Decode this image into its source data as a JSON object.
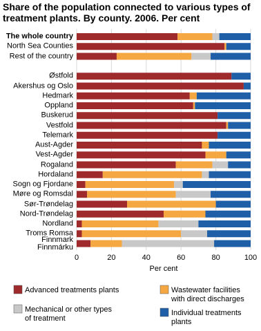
{
  "chart_data": {
    "type": "stacked_bar_horizontal",
    "title": "Share of the population connected to various types of treatment plants. By county. 2006. Per cent",
    "x_label": "Per cent",
    "categories": [
      "The whole country",
      "North Sea Counties",
      "Rest of the country",
      "Østfold",
      "Akershus og Oslo",
      "Hedmark",
      "Oppland",
      "Buskerud",
      "Vestfold",
      "Telemark",
      "Aust-Agder",
      "Vest-Agder",
      "Rogaland",
      "Hordaland",
      "Sogn og Fjordane",
      "Møre og Romsdal",
      "Sør-Trøndelag",
      "Nord-Trøndelag",
      "Nordland",
      "Troms Romsa",
      "Finnmark\nFinnmárku"
    ],
    "series": [
      {
        "name": "Advanced treatments plants",
        "color": "#9e2a2b",
        "values": [
          58,
          85,
          23,
          89,
          96,
          65,
          67,
          81,
          86,
          81,
          72,
          74,
          57,
          15,
          5,
          6,
          29,
          50,
          3,
          3,
          8
        ]
      },
      {
        "name": "Wastewater facilities\nwith direct discharges",
        "color": "#f5a742",
        "values": [
          20,
          1,
          43,
          0,
          0,
          4,
          1,
          0,
          1,
          0,
          4,
          12,
          21,
          57,
          51,
          51,
          51,
          24,
          44,
          57,
          18
        ]
      },
      {
        "name": "Mechanical or other types\nof treatment",
        "color": "#c8c8c8",
        "values": [
          4,
          0,
          11,
          0,
          0,
          0,
          0,
          0,
          0,
          0,
          0,
          0,
          9,
          4,
          5,
          20,
          0,
          0,
          23,
          15,
          53
        ]
      },
      {
        "name": "Individual treatments\nplants",
        "color": "#1f5fa8",
        "values": [
          18,
          14,
          23,
          11,
          4,
          31,
          32,
          19,
          13,
          19,
          24,
          14,
          13,
          24,
          39,
          23,
          20,
          26,
          30,
          25,
          21
        ]
      }
    ],
    "xlim": [
      0,
      100
    ],
    "xticks": [
      0,
      20,
      40,
      60,
      80,
      100
    ],
    "grid": true
  }
}
